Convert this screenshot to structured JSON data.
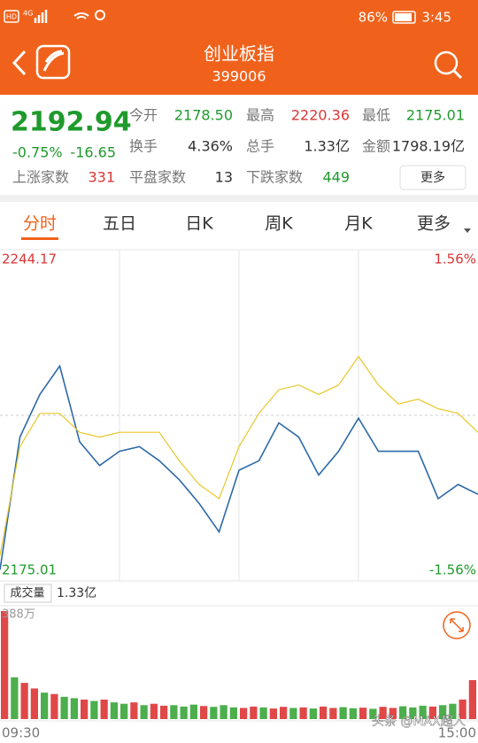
{
  "status_bar": {
    "icons": [
      "HD",
      "4G"
    ],
    "battery": "86%",
    "time": "3:45"
  },
  "header": {
    "title": "创业板指",
    "code": "399006"
  },
  "quote": {
    "price": "2192.94",
    "change_pct": "-0.75%",
    "change": "-16.65",
    "rows": [
      [
        {
          "label": "今开",
          "value": "2178.50"
        },
        {
          "label": "最高",
          "value": "2220.36"
        },
        {
          "label": "最低",
          "value": "2175.01"
        }
      ],
      [
        {
          "label": "换手",
          "value": "4.36%"
        },
        {
          "label": "总手",
          "value": "1.33亿"
        },
        {
          "label": "金额",
          "value": "1798.19亿"
        }
      ],
      [
        {
          "label": "上涨家数",
          "value": "331"
        },
        {
          "label": "平盘家数",
          "value": "13"
        },
        {
          "label": "下跌家数",
          "value": "449"
        }
      ]
    ],
    "more": "更多"
  },
  "tabs": [
    "分时",
    "五日",
    "日K",
    "周K",
    "月K",
    "更多"
  ],
  "watermark": "头条 @MAX超人",
  "chart_data": [
    {
      "type": "line",
      "ylim": [
        2175.01,
        2244.17
      ],
      "yticks": [
        2175.01,
        2244.17
      ],
      "y2lim": [
        -1.56,
        1.56
      ],
      "y2ticks": [
        {
          "value": -1.56,
          "label": "-1.56%"
        },
        {
          "value": 1.56,
          "label": "1.56%"
        }
      ],
      "series": [
        {
          "color": "#2e6aa8",
          "values": [
            2177.0,
            2205,
            2214,
            2220,
            2204,
            2199,
            2202,
            2203,
            2200,
            2196,
            2191,
            2185,
            2198,
            2200,
            2208,
            2205,
            2197,
            2202,
            2209,
            2202,
            2202,
            2202,
            2192,
            2195,
            2192.94
          ]
        },
        {
          "color": "#e8c72a",
          "values": [
            2180,
            2203,
            2210,
            2210,
            2206,
            2205,
            2206,
            2206,
            2206,
            2200,
            2195,
            2192,
            2203,
            2210,
            2215,
            2216,
            2214,
            2216,
            2222,
            2216,
            2212,
            2213,
            2211,
            2210,
            2206
          ]
        }
      ]
    },
    {
      "type": "bar",
      "title": "成交量",
      "subtitle": "1.33亿",
      "ylim": [
        0,
        388
      ],
      "yticks": [
        {
          "value": 388,
          "label": "388万"
        }
      ],
      "x_range_labels": [
        "09:30",
        "15:00"
      ],
      "values": [
        388,
        150,
        130,
        110,
        95,
        90,
        80,
        75,
        70,
        65,
        70,
        60,
        55,
        60,
        50,
        55,
        48,
        50,
        45,
        52,
        47,
        44,
        50,
        42,
        40,
        45,
        42,
        38,
        44,
        40,
        42,
        38,
        45,
        40,
        43,
        39,
        41,
        37,
        44,
        40,
        46,
        42,
        48,
        45,
        50,
        55,
        70,
        140
      ],
      "colors": [
        "#e04848",
        "#4cae4c",
        "#e04848",
        "#e04848",
        "#4cae4c",
        "#e04848",
        "#4cae4c",
        "#4cae4c",
        "#e04848",
        "#4cae4c",
        "#e04848",
        "#4cae4c",
        "#4cae4c",
        "#e04848",
        "#4cae4c",
        "#e04848",
        "#e04848",
        "#4cae4c",
        "#4cae4c",
        "#4cae4c",
        "#e04848",
        "#4cae4c",
        "#4cae4c",
        "#4cae4c",
        "#e04848",
        "#e04848",
        "#4cae4c",
        "#e04848",
        "#e04848",
        "#4cae4c",
        "#e04848",
        "#4cae4c",
        "#e04848",
        "#e04848",
        "#4cae4c",
        "#4cae4c",
        "#e04848",
        "#4cae4c",
        "#e04848",
        "#e04848",
        "#4cae4c",
        "#4cae4c",
        "#4cae4c",
        "#e04848",
        "#4cae4c",
        "#4cae4c",
        "#e04848",
        "#e04848"
      ]
    }
  ]
}
